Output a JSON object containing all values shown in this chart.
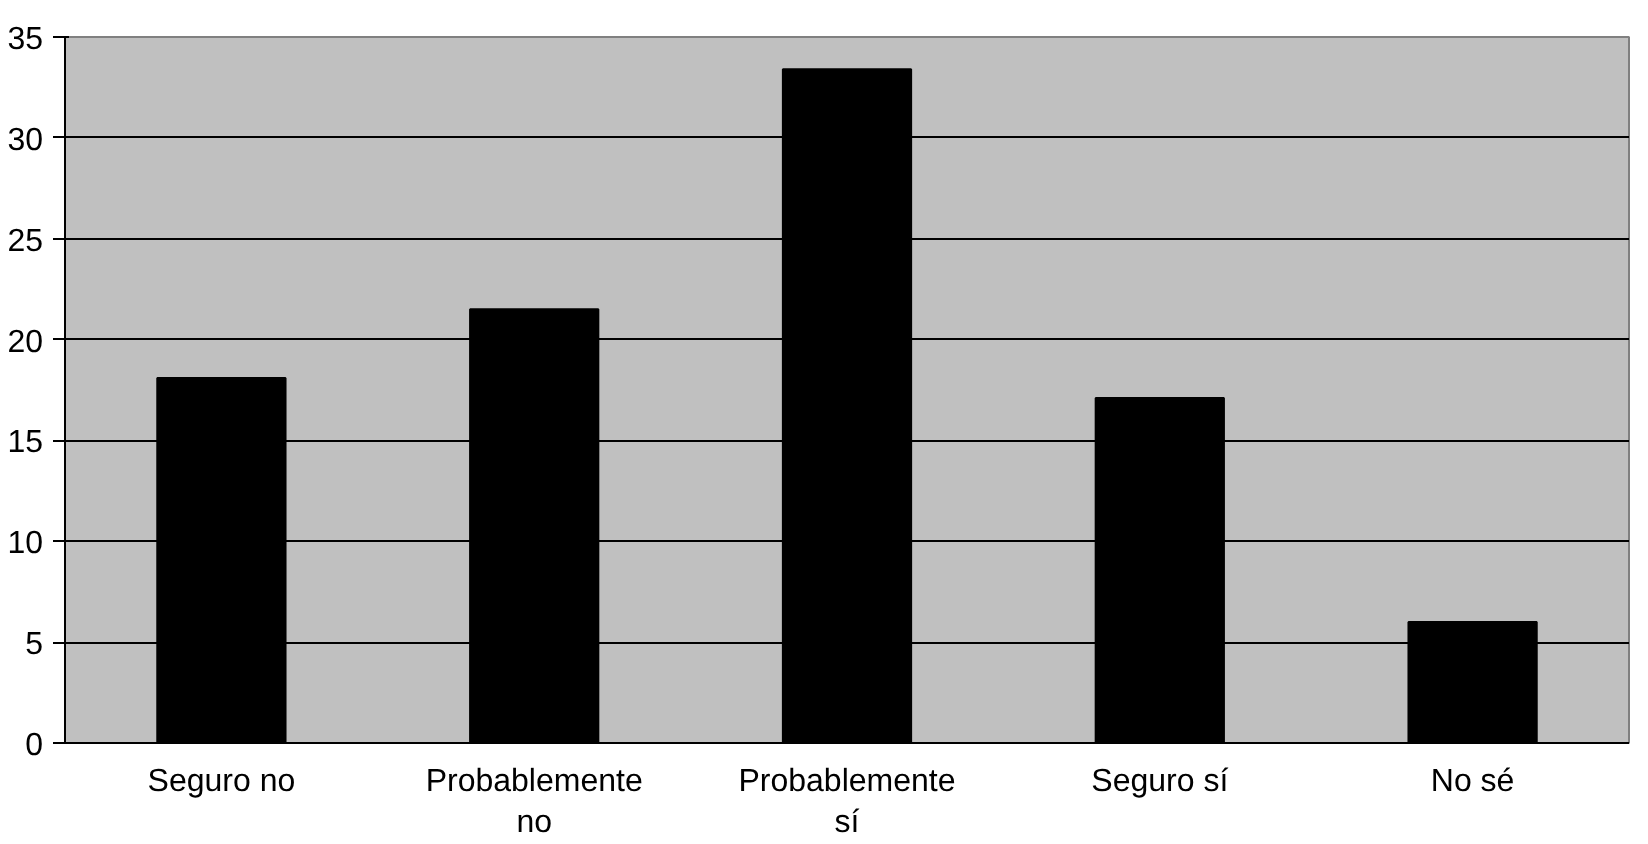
{
  "chart_data": {
    "type": "bar",
    "categories": [
      "Seguro no",
      "Probablemente no",
      "Probablemente sí",
      "Seguro sí",
      "No sé"
    ],
    "values": [
      18.1,
      21.5,
      33.4,
      17.1,
      6.0
    ],
    "color": "#000000",
    "ylim": [
      0,
      35
    ],
    "yticks": [
      0,
      5,
      10,
      15,
      20,
      25,
      30,
      35
    ],
    "grid": "y"
  }
}
